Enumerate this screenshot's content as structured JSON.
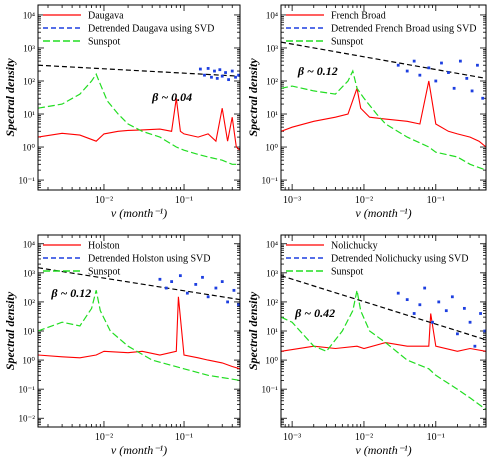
{
  "figure": {
    "panels_count": 4
  },
  "chart_data": [
    {
      "type": "line",
      "panel": "top-left",
      "xlabel": "ν (month⁻¹)",
      "ylabel": "Spectral density",
      "x_scale": "log",
      "y_scale": "log",
      "xlim": [
        0.0015,
        0.5
      ],
      "ylim": [
        0.05,
        20000
      ],
      "x_ticks": [
        0.01,
        0.1
      ],
      "x_tick_labels": [
        "10⁻²",
        "10⁻¹"
      ],
      "y_ticks": [
        0.1,
        1,
        10,
        100,
        1000,
        10000
      ],
      "y_tick_labels": [
        "10⁻¹",
        "10⁰",
        "10¹",
        "10²",
        "10³",
        "10⁴"
      ],
      "annotation": "β ~ 0.04",
      "annotation_pos": [
        0.04,
        25
      ],
      "legend_position": "top-left",
      "series": [
        {
          "name": "Daugava",
          "kind": "line",
          "color": "#ff0000",
          "x": [
            0.0015,
            0.003,
            0.005,
            0.008,
            0.01,
            0.015,
            0.02,
            0.03,
            0.05,
            0.07,
            0.08,
            0.09,
            0.1,
            0.15,
            0.2,
            0.25,
            0.3,
            0.35,
            0.4,
            0.45,
            0.5
          ],
          "y": [
            2,
            2.6,
            2.3,
            1.5,
            2.5,
            3,
            3.2,
            3.3,
            3.5,
            3,
            30,
            3,
            2.5,
            2,
            2.5,
            1.5,
            15,
            1.5,
            8,
            1,
            0.8
          ]
        },
        {
          "name": "Detrended Daugava using SVD",
          "kind": "dash",
          "color": "#000000",
          "x": [
            0.0015,
            0.5
          ],
          "y": [
            300,
            140
          ]
        },
        {
          "name": "",
          "kind": "scatter",
          "color": "#1d3fe0",
          "x": [
            0.16,
            0.18,
            0.2,
            0.22,
            0.24,
            0.26,
            0.28,
            0.3,
            0.33,
            0.36,
            0.4,
            0.44,
            0.48
          ],
          "y": [
            230,
            150,
            240,
            130,
            200,
            120,
            220,
            140,
            180,
            110,
            200,
            130,
            150
          ]
        },
        {
          "name": "Sunspot",
          "kind": "dash",
          "color": "#22dd22",
          "x": [
            0.0015,
            0.003,
            0.005,
            0.007,
            0.008,
            0.009,
            0.011,
            0.015,
            0.02,
            0.03,
            0.05,
            0.08,
            0.1,
            0.15,
            0.2,
            0.3,
            0.4,
            0.5
          ],
          "y": [
            15,
            20,
            40,
            100,
            160,
            80,
            25,
            10,
            5,
            3,
            2,
            1,
            0.8,
            0.6,
            0.5,
            0.4,
            0.3,
            0.3
          ]
        }
      ]
    },
    {
      "type": "line",
      "panel": "top-right",
      "xlabel": "ν (month⁻¹)",
      "ylabel": "Spectral density",
      "x_scale": "log",
      "y_scale": "log",
      "xlim": [
        0.0007,
        0.5
      ],
      "ylim": [
        0.05,
        20000
      ],
      "x_ticks": [
        0.001,
        0.01,
        0.1
      ],
      "x_tick_labels": [
        "10⁻³",
        "10⁻²",
        "10⁻¹"
      ],
      "y_ticks": [
        0.1,
        1,
        10,
        100,
        1000,
        10000
      ],
      "y_tick_labels": [
        "10⁻¹",
        "10⁰",
        "10¹",
        "10²",
        "10³",
        "10⁴"
      ],
      "annotation": "β ~ 0.12",
      "annotation_pos": [
        0.0012,
        150
      ],
      "legend_position": "top-left",
      "series": [
        {
          "name": "French Broad",
          "kind": "line",
          "color": "#ff0000",
          "x": [
            0.0007,
            0.001,
            0.002,
            0.004,
            0.006,
            0.008,
            0.009,
            0.012,
            0.02,
            0.04,
            0.06,
            0.08,
            0.1,
            0.15,
            0.2,
            0.3,
            0.4,
            0.5
          ],
          "y": [
            3,
            4,
            6,
            8,
            10,
            60,
            15,
            8,
            7,
            6,
            5,
            100,
            5,
            3,
            2.5,
            2,
            1.5,
            1
          ]
        },
        {
          "name": "Detrended French Broad using SVD",
          "kind": "dash",
          "color": "#000000",
          "x": [
            0.0007,
            0.5
          ],
          "y": [
            1500,
            120
          ]
        },
        {
          "name": "",
          "kind": "scatter",
          "color": "#1d3fe0",
          "x": [
            0.03,
            0.04,
            0.05,
            0.06,
            0.08,
            0.1,
            0.12,
            0.15,
            0.18,
            0.22,
            0.27,
            0.32,
            0.38,
            0.45
          ],
          "y": [
            300,
            200,
            400,
            150,
            250,
            100,
            350,
            180,
            60,
            400,
            120,
            50,
            300,
            30
          ]
        },
        {
          "name": "Sunspot",
          "kind": "dash",
          "color": "#22dd22",
          "x": [
            0.0007,
            0.001,
            0.002,
            0.004,
            0.006,
            0.007,
            0.008,
            0.01,
            0.015,
            0.02,
            0.04,
            0.08,
            0.1,
            0.2,
            0.3,
            0.5
          ],
          "y": [
            60,
            70,
            50,
            40,
            100,
            200,
            60,
            30,
            10,
            5,
            2,
            1,
            0.7,
            0.5,
            0.3,
            0.2
          ]
        }
      ]
    },
    {
      "type": "line",
      "panel": "bottom-left",
      "xlabel": "ν (month⁻¹)",
      "ylabel": "Spectral density",
      "x_scale": "log",
      "y_scale": "log",
      "xlim": [
        0.0015,
        0.5
      ],
      "ylim": [
        0.005,
        20000
      ],
      "x_ticks": [
        0.01,
        0.1
      ],
      "x_tick_labels": [
        "10⁻²",
        "10⁻¹"
      ],
      "y_ticks": [
        0.01,
        0.1,
        1,
        10,
        100,
        1000,
        10000
      ],
      "y_tick_labels": [
        "10⁻²",
        "10⁻¹",
        "10⁰",
        "10¹",
        "10²",
        "10³",
        "10⁴"
      ],
      "annotation": "β ~ 0.12",
      "annotation_pos": [
        0.0022,
        150
      ],
      "legend_position": "top-left",
      "series": [
        {
          "name": "Holston",
          "kind": "line",
          "color": "#ff0000",
          "x": [
            0.0015,
            0.003,
            0.005,
            0.008,
            0.01,
            0.02,
            0.03,
            0.05,
            0.08,
            0.085,
            0.1,
            0.15,
            0.2,
            0.3,
            0.4,
            0.5
          ],
          "y": [
            1.5,
            1.3,
            1.2,
            1.5,
            2,
            1.8,
            2,
            1.5,
            2,
            150,
            1.5,
            1.2,
            1,
            0.8,
            0.6,
            0.5
          ]
        },
        {
          "name": "Detrended Holston using SVD",
          "kind": "dash",
          "color": "#000000",
          "x": [
            0.0015,
            0.5
          ],
          "y": [
            1500,
            120
          ]
        },
        {
          "name": "",
          "kind": "scatter",
          "color": "#1d3fe0",
          "x": [
            0.05,
            0.06,
            0.07,
            0.09,
            0.11,
            0.14,
            0.17,
            0.2,
            0.25,
            0.3,
            0.35,
            0.42,
            0.48
          ],
          "y": [
            600,
            300,
            500,
            800,
            200,
            400,
            700,
            150,
            300,
            500,
            100,
            250,
            80
          ]
        },
        {
          "name": "Sunspot",
          "kind": "dash",
          "color": "#22dd22",
          "x": [
            0.0015,
            0.003,
            0.005,
            0.007,
            0.008,
            0.009,
            0.012,
            0.02,
            0.04,
            0.1,
            0.2,
            0.5
          ],
          "y": [
            10,
            20,
            15,
            60,
            250,
            50,
            10,
            3,
            1,
            0.5,
            0.3,
            0.2
          ]
        }
      ]
    },
    {
      "type": "line",
      "panel": "bottom-right",
      "xlabel": "ν (month⁻¹)",
      "ylabel": "Spectral density",
      "x_scale": "log",
      "y_scale": "log",
      "xlim": [
        0.0007,
        0.5
      ],
      "ylim": [
        0.005,
        20000
      ],
      "x_ticks": [
        0.001,
        0.01,
        0.1
      ],
      "x_tick_labels": [
        "10⁻³",
        "10⁻²",
        "10⁻¹"
      ],
      "y_ticks": [
        0.1,
        1,
        10,
        100,
        1000,
        10000
      ],
      "y_tick_labels": [
        "10⁻¹",
        "10⁰",
        "10¹",
        "10²",
        "10³",
        "10⁴"
      ],
      "annotation": "β ~ 0.42",
      "annotation_pos": [
        0.0011,
        30
      ],
      "legend_position": "top-left",
      "series": [
        {
          "name": "Nolichucky",
          "kind": "line",
          "color": "#ff0000",
          "x": [
            0.0007,
            0.002,
            0.004,
            0.008,
            0.01,
            0.02,
            0.04,
            0.08,
            0.085,
            0.1,
            0.2,
            0.3,
            0.5
          ],
          "y": [
            2,
            3,
            2.5,
            3,
            2.5,
            4,
            3,
            3,
            40,
            3,
            2,
            2.5,
            2
          ]
        },
        {
          "name": "Detrended Nolichucky using SVD",
          "kind": "dash",
          "color": "#000000",
          "x": [
            0.0007,
            0.5
          ],
          "y": [
            800,
            5
          ]
        },
        {
          "name": "",
          "kind": "scatter",
          "color": "#1d3fe0",
          "x": [
            0.03,
            0.04,
            0.05,
            0.06,
            0.07,
            0.09,
            0.11,
            0.14,
            0.17,
            0.2,
            0.25,
            0.3,
            0.35,
            0.42,
            0.48
          ],
          "y": [
            200,
            120,
            40,
            80,
            300,
            20,
            100,
            50,
            150,
            8,
            60,
            20,
            3,
            40,
            10
          ]
        },
        {
          "name": "Sunspot",
          "kind": "dash",
          "color": "#22dd22",
          "x": [
            0.0007,
            0.001,
            0.002,
            0.003,
            0.005,
            0.007,
            0.008,
            0.009,
            0.012,
            0.02,
            0.04,
            0.08,
            0.1,
            0.2,
            0.3,
            0.5
          ],
          "y": [
            30,
            20,
            3,
            2,
            10,
            50,
            250,
            50,
            10,
            4,
            1,
            0.5,
            0.3,
            0.1,
            0.05,
            0.02
          ]
        }
      ]
    }
  ]
}
